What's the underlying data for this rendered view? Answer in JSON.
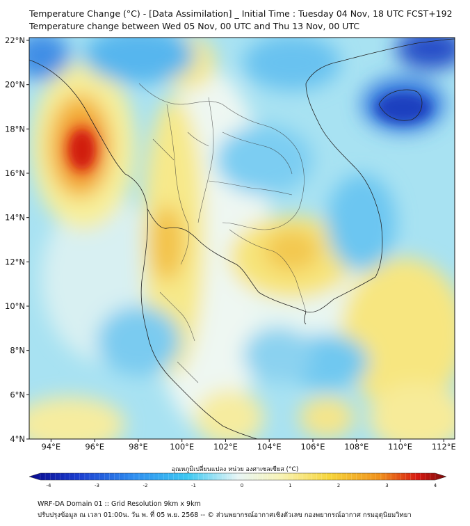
{
  "title_line1": "Temperature Change (°C) - [Data Assimilation] _ Initial Time : Tuesday 04 Nov, 18 UTC FCST+192",
  "title_line2": "Temperature change between Wed 05 Nov, 00 UTC and Thu 13 Nov, 00 UTC",
  "map": {
    "lat_labels": [
      "22°N",
      "20°N",
      "18°N",
      "16°N",
      "14°N",
      "12°N",
      "10°N",
      "8°N",
      "6°N",
      "4°N"
    ],
    "lon_labels": [
      "94°E",
      "96°E",
      "98°E",
      "100°E",
      "102°E",
      "104°E",
      "106°E",
      "108°E",
      "110°E",
      "112°E"
    ],
    "lat_range": [
      4,
      22
    ],
    "lon_range": [
      93,
      112.5
    ]
  },
  "colorbar": {
    "title": "อุณหภูมิเปลี่ยนแปลง หน่วย องศาเซลเซียส (°C)",
    "tick_labels": [
      "-4",
      "-3",
      "-2",
      "-1",
      "0",
      "1",
      "2",
      "3",
      "4"
    ],
    "range": [
      -4,
      4
    ],
    "colors": [
      "#08088c",
      "#1c3fd0",
      "#2f8ef0",
      "#3cc8f2",
      "#bfe8f3",
      "#f8f4b8",
      "#f7d53a",
      "#f0911c",
      "#d81a12",
      "#7a0a0a"
    ]
  },
  "footer_line1": "WRF-DA Domain 01 :: Grid Resolution 9km x 9km",
  "footer_line2": "ปรับปรุงข้อมูล ณ เวลา 01:00น. วัน พ. ที่ 05 พ.ย. 2568 -- © ส่วนพยากรณ์อากาศเชิงตัวเลข กองพยากรณ์อากาศ กรมอุตุนิยมวิทยา"
}
